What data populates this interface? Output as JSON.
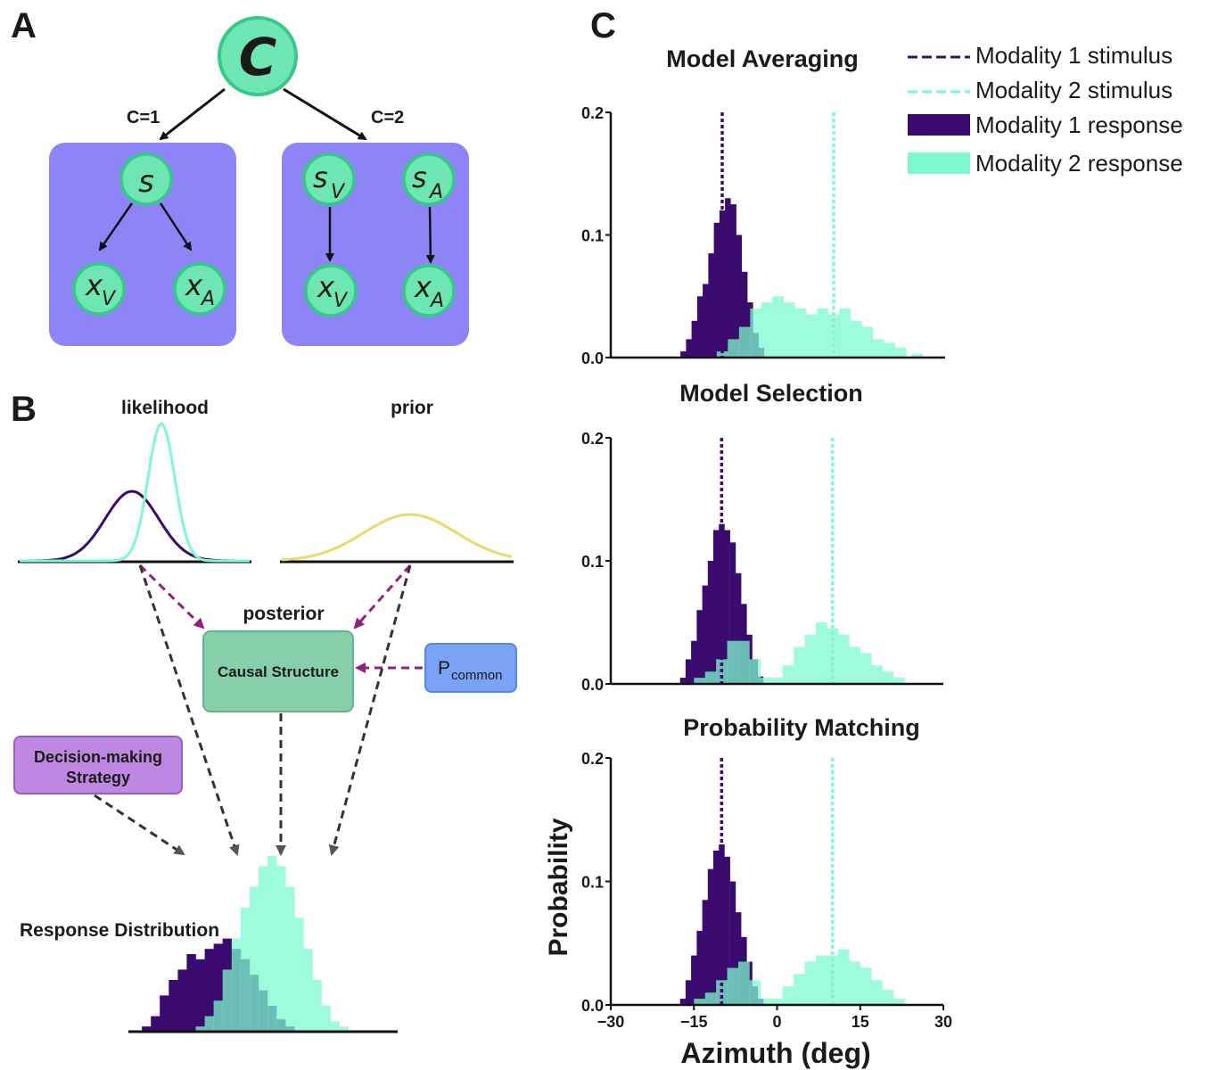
{
  "panel_a": {
    "label": "A",
    "root": "C",
    "left_edge_label": "C=1",
    "right_edge_label": "C=2",
    "left_box": {
      "s_base": "s",
      "xv_base": "x",
      "xv_sub": "V",
      "xa_base": "x",
      "xa_sub": "A"
    },
    "right_box": {
      "sv_base": "s",
      "sv_sub": "V",
      "sa_base": "s",
      "sa_sub": "A",
      "xv_base": "x",
      "xv_sub": "V",
      "xa_base": "x",
      "xa_sub": "A"
    }
  },
  "panel_b": {
    "label": "B",
    "likelihood_label": "likelihood",
    "prior_label": "prior",
    "posterior_label": "posterior",
    "causal_structure_label": "Causal Structure",
    "p_common_base": "P",
    "p_common_sub": "common",
    "decision_line1": "Decision-making",
    "decision_line2": "Strategy",
    "response_label": "Response Distribution"
  },
  "panel_c": {
    "label": "C",
    "legend": {
      "mod1_stim": "Modality 1 stimulus",
      "mod2_stim": "Modality 2 stimulus",
      "mod1_resp": "Modality 1 response",
      "mod2_resp": "Modality 2 response"
    },
    "ylabel": "Probability",
    "xlabel": "Azimuth (deg)"
  },
  "colors": {
    "modality1": "#3a0a6e",
    "modality2": "#7ef9cf",
    "overlap": "#5fbfb3",
    "node_fill": "#6ee6b2",
    "node_stroke": "#36c98a",
    "box_fill": "#8c84f7",
    "prior": "#ecd96b",
    "causal_box": "#86cfa8",
    "p_common_box": "#7ba3f5",
    "decision_box": "#be88e2",
    "magenta_arrow": "#951f7f"
  },
  "chart_data": [
    {
      "type": "bar",
      "title": "Model Averaging",
      "xlim": [
        -30,
        30
      ],
      "ylim": [
        0,
        0.2
      ],
      "yticks": [
        "0.0",
        "0.1",
        "0.2"
      ],
      "xticks": [],
      "series": [
        {
          "name": "Modality 1 stimulus",
          "x": -10
        },
        {
          "name": "Modality 2 stimulus",
          "x": 10
        },
        {
          "name": "Modality 1 response",
          "values": [
            [
              -17,
              0.005
            ],
            [
              -16,
              0.015
            ],
            [
              -15,
              0.03
            ],
            [
              -14,
              0.05
            ],
            [
              -13,
              0.06
            ],
            [
              -12,
              0.085
            ],
            [
              -11,
              0.11
            ],
            [
              -10,
              0.12
            ],
            [
              -9,
              0.13
            ],
            [
              -8,
              0.125
            ],
            [
              -7,
              0.1
            ],
            [
              -6,
              0.07
            ],
            [
              -5,
              0.045
            ],
            [
              -4,
              0.02
            ],
            [
              -3,
              0.008
            ]
          ]
        },
        {
          "name": "Modality 2 response",
          "values": [
            [
              -10,
              0.005
            ],
            [
              -8,
              0.015
            ],
            [
              -6,
              0.025
            ],
            [
              -4,
              0.04
            ],
            [
              -2,
              0.045
            ],
            [
              0,
              0.05
            ],
            [
              2,
              0.045
            ],
            [
              4,
              0.04
            ],
            [
              6,
              0.035
            ],
            [
              8,
              0.04
            ],
            [
              10,
              0.035
            ],
            [
              12,
              0.04
            ],
            [
              14,
              0.03
            ],
            [
              16,
              0.025
            ],
            [
              18,
              0.015
            ],
            [
              20,
              0.012
            ],
            [
              22,
              0.008
            ],
            [
              25,
              0.003
            ]
          ]
        }
      ]
    },
    {
      "type": "bar",
      "title": "Model Selection",
      "xlim": [
        -30,
        30
      ],
      "ylim": [
        0,
        0.2
      ],
      "yticks": [
        "0.0",
        "0.1",
        "0.2"
      ],
      "xticks": [],
      "series": [
        {
          "name": "Modality 1 stimulus",
          "x": -10
        },
        {
          "name": "Modality 2 stimulus",
          "x": 10
        },
        {
          "name": "Modality 1 response",
          "values": [
            [
              -17,
              0.005
            ],
            [
              -16,
              0.02
            ],
            [
              -15,
              0.035
            ],
            [
              -14,
              0.06
            ],
            [
              -13,
              0.08
            ],
            [
              -12,
              0.1
            ],
            [
              -11,
              0.125
            ],
            [
              -10,
              0.13
            ],
            [
              -9,
              0.125
            ],
            [
              -8,
              0.115
            ],
            [
              -7,
              0.09
            ],
            [
              -6,
              0.065
            ],
            [
              -5,
              0.04
            ],
            [
              -4,
              0.02
            ],
            [
              -3,
              0.006
            ]
          ]
        },
        {
          "name": "Modality 2 response",
          "values": [
            [
              -14,
              0.005
            ],
            [
              -12,
              0.01
            ],
            [
              -10,
              0.02
            ],
            [
              -8,
              0.035
            ],
            [
              -6,
              0.035
            ],
            [
              -4,
              0.02
            ],
            [
              -2,
              0.005
            ],
            [
              0,
              0.005
            ],
            [
              2,
              0.015
            ],
            [
              4,
              0.03
            ],
            [
              6,
              0.04
            ],
            [
              8,
              0.05
            ],
            [
              10,
              0.045
            ],
            [
              12,
              0.04
            ],
            [
              14,
              0.03
            ],
            [
              16,
              0.025
            ],
            [
              18,
              0.015
            ],
            [
              20,
              0.01
            ],
            [
              22,
              0.005
            ]
          ]
        }
      ]
    },
    {
      "type": "bar",
      "title": "Probability Matching",
      "xlim": [
        -30,
        30
      ],
      "ylim": [
        0,
        0.2
      ],
      "yticks": [
        "0.0",
        "0.1",
        "0.2"
      ],
      "xticks": [
        "−30",
        "−15",
        "0",
        "15",
        "30"
      ],
      "xtick_values": [
        -30,
        -15,
        0,
        15,
        30
      ],
      "series": [
        {
          "name": "Modality 1 stimulus",
          "x": -10
        },
        {
          "name": "Modality 2 stimulus",
          "x": 10
        },
        {
          "name": "Modality 1 response",
          "values": [
            [
              -17,
              0.005
            ],
            [
              -16,
              0.02
            ],
            [
              -15,
              0.04
            ],
            [
              -14,
              0.06
            ],
            [
              -13,
              0.085
            ],
            [
              -12,
              0.11
            ],
            [
              -11,
              0.125
            ],
            [
              -10,
              0.13
            ],
            [
              -9,
              0.12
            ],
            [
              -8,
              0.1
            ],
            [
              -7,
              0.075
            ],
            [
              -6,
              0.055
            ],
            [
              -5,
              0.035
            ],
            [
              -4,
              0.015
            ],
            [
              -3,
              0.005
            ]
          ]
        },
        {
          "name": "Modality 2 response",
          "values": [
            [
              -14,
              0.005
            ],
            [
              -12,
              0.01
            ],
            [
              -10,
              0.02
            ],
            [
              -8,
              0.03
            ],
            [
              -6,
              0.035
            ],
            [
              -4,
              0.02
            ],
            [
              -2,
              0.005
            ],
            [
              0,
              0.005
            ],
            [
              2,
              0.015
            ],
            [
              4,
              0.025
            ],
            [
              6,
              0.035
            ],
            [
              8,
              0.04
            ],
            [
              10,
              0.04
            ],
            [
              12,
              0.045
            ],
            [
              14,
              0.035
            ],
            [
              16,
              0.03
            ],
            [
              18,
              0.02
            ],
            [
              20,
              0.012
            ],
            [
              22,
              0.005
            ]
          ]
        }
      ]
    },
    {
      "type": "bar",
      "title": "",
      "xlim": [
        -30,
        30
      ],
      "ylim": [
        0,
        0.2
      ],
      "series": [
        {
          "name": "Modality 1 response",
          "values": [
            [
              -26,
              0.005
            ],
            [
              -24,
              0.015
            ],
            [
              -22,
              0.035
            ],
            [
              -20,
              0.05
            ],
            [
              -18,
              0.06
            ],
            [
              -16,
              0.075
            ],
            [
              -14,
              0.07
            ],
            [
              -12,
              0.08
            ],
            [
              -10,
              0.085
            ],
            [
              -8,
              0.09
            ],
            [
              -6,
              0.08
            ],
            [
              -4,
              0.07
            ],
            [
              -2,
              0.055
            ],
            [
              0,
              0.04
            ],
            [
              2,
              0.025
            ],
            [
              4,
              0.012
            ],
            [
              6,
              0.005
            ]
          ]
        },
        {
          "name": "Modality 2 response",
          "values": [
            [
              -14,
              0.005
            ],
            [
              -12,
              0.015
            ],
            [
              -10,
              0.03
            ],
            [
              -8,
              0.06
            ],
            [
              -6,
              0.09
            ],
            [
              -4,
              0.12
            ],
            [
              -2,
              0.14
            ],
            [
              0,
              0.16
            ],
            [
              2,
              0.17
            ],
            [
              4,
              0.16
            ],
            [
              6,
              0.14
            ],
            [
              8,
              0.11
            ],
            [
              10,
              0.08
            ],
            [
              12,
              0.05
            ],
            [
              14,
              0.025
            ],
            [
              16,
              0.01
            ],
            [
              18,
              0.005
            ]
          ]
        }
      ]
    }
  ]
}
